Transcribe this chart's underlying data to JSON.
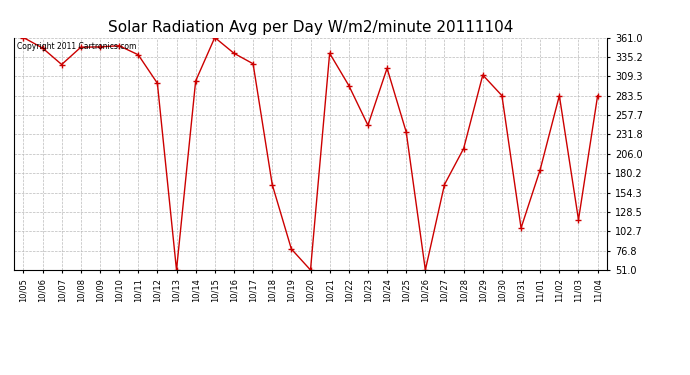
{
  "title": "Solar Radiation Avg per Day W/m2/minute 20111104",
  "copyright_text": "Copyright 2011 Cartronics.com",
  "dates": [
    "10/05",
    "10/06",
    "10/07",
    "10/08",
    "10/09",
    "10/10",
    "10/11",
    "10/12",
    "10/13",
    "10/14",
    "10/15",
    "10/16",
    "10/17",
    "10/18",
    "10/19",
    "10/20",
    "10/21",
    "10/22",
    "10/23",
    "10/24",
    "10/25",
    "10/26",
    "10/27",
    "10/28",
    "10/29",
    "10/30",
    "10/31",
    "11/01",
    "11/02",
    "11/03",
    "11/04"
  ],
  "values": [
    361.0,
    347.0,
    325.0,
    348.0,
    348.5,
    350.0,
    338.0,
    300.0,
    51.0,
    303.0,
    361.0,
    340.0,
    326.0,
    165.0,
    79.0,
    51.0,
    340.0,
    297.0,
    244.0,
    320.0,
    235.0,
    51.0,
    165.0,
    213.0,
    311.0,
    283.5,
    107.0,
    185.0,
    283.5,
    118.0,
    283.5
  ],
  "yticks": [
    51.0,
    76.8,
    102.7,
    128.5,
    154.3,
    180.2,
    206.0,
    231.8,
    257.7,
    283.5,
    309.3,
    335.2,
    361.0
  ],
  "line_color": "#cc0000",
  "marker": "+",
  "bg_color": "#ffffff",
  "grid_color": "#bbbbbb",
  "title_fontsize": 11,
  "ytick_fontsize": 7,
  "xtick_fontsize": 6,
  "copyright_fontsize": 5.5
}
